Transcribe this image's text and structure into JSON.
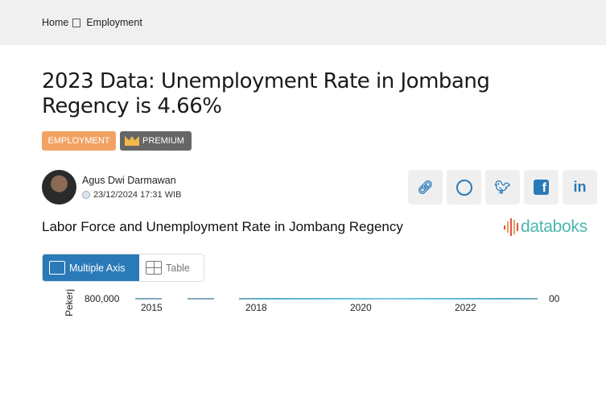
{
  "breadcrumb": {
    "home": "Home",
    "current": "Employment"
  },
  "title": "2023 Data: Unemployment Rate in Jombang Regency is 4.66%",
  "badges": {
    "category": "EMPLOYMENT",
    "premium": "PREMIUM"
  },
  "author": {
    "name": "Agus Dwi Darmawan",
    "date": "23/12/2024 17:31 WIB"
  },
  "share": [
    "link-icon",
    "whatsapp-icon",
    "twitter-icon",
    "facebook-icon",
    "linkedin-icon"
  ],
  "chart_title": "Labor Force and Unemployment Rate in Jombang Regency",
  "logo": "databoks",
  "tabs": {
    "multi": "Multiple Axis",
    "table": "Table"
  },
  "colors": {
    "accent": "#2a7ab8",
    "category": "#f2a363",
    "logo": "#4db6ac"
  },
  "chart_data": {
    "type": "line",
    "ylabel": "Pekerj",
    "y_tick": "800,000",
    "y2_tick": "00",
    "x_ticks": [
      "2015",
      "2018",
      "2020",
      "2022"
    ]
  }
}
